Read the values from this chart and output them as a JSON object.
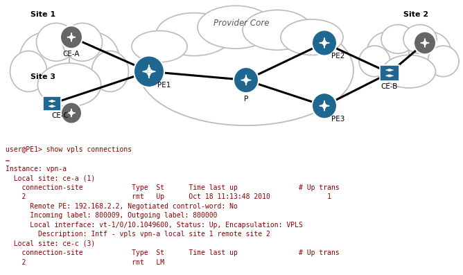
{
  "bg_color": "#ffffff",
  "provider_core_label": "Provider Core",
  "edge_color": "#000000",
  "edge_width": 2.2,
  "cloud_color": "#bbbbbb",
  "node_blue": "#1f6690",
  "node_gray": "#666666",
  "cli_lines": [
    "user@PE1> show vpls connections",
    "…",
    "Instance: vpn-a",
    "  Local site: ce-a (1)",
    "    connection-site            Type  St      Time last up               # Up trans",
    "    2                          rmt   Up      Oct 18 11:13:48 2010              1",
    "      Remote PE: 192.168.2.2, Negotiated control-word: No",
    "      Incoming label: 800009, Outgoing label: 800000",
    "      Local interface: vt-1/0/10.1049600, Status: Up, Encapsulation: VPLS",
    "        Description: Intf - vpls vpn-a local site 1 remote site 2",
    "  Local site: ce-c (3)",
    "    connection-site            Type  St      Time last up               # Up trans",
    "    2                          rmt   LM"
  ]
}
